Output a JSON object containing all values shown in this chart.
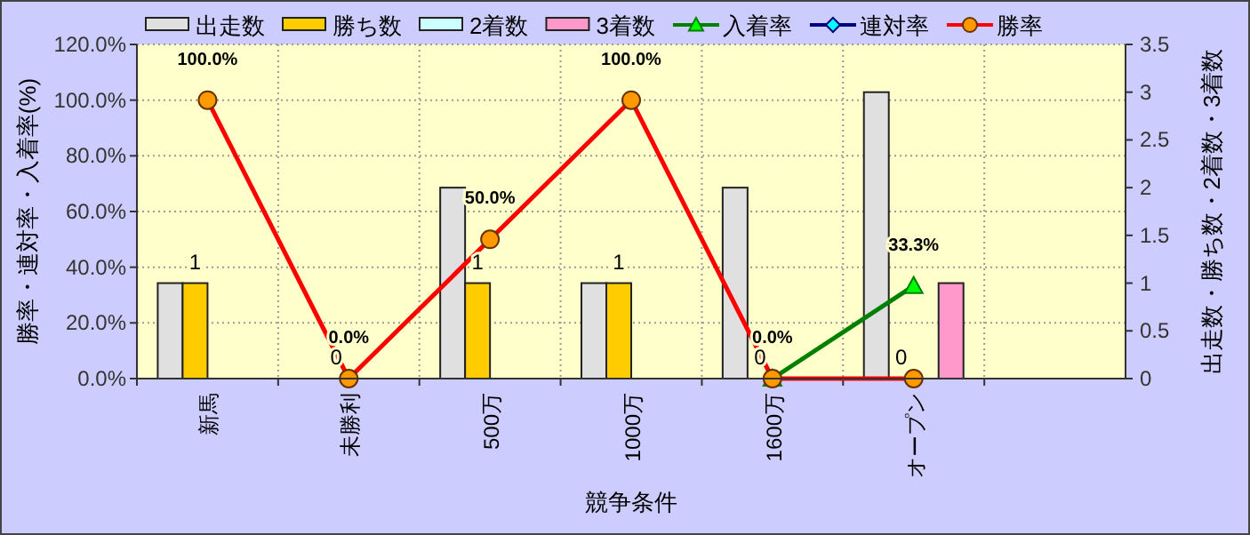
{
  "chart_data": {
    "type": "bar",
    "categories": [
      "新馬",
      "未勝利",
      "500万",
      "1000万",
      "1600万",
      "オープン",
      null
    ],
    "xlabel": "競争条件",
    "ylabel": "勝率・連対率・入着率(%)",
    "y2label": "出走数・勝ち数・2着数・3着数",
    "ylim": [
      0,
      120
    ],
    "yticks": [
      {
        "value": 0,
        "label": "0.0%"
      },
      {
        "value": 20,
        "label": "20.0%"
      },
      {
        "value": 40,
        "label": "40.0%"
      },
      {
        "value": 60,
        "label": "60.0%"
      },
      {
        "value": 80,
        "label": "80.0%"
      },
      {
        "value": 100,
        "label": "100.0%"
      },
      {
        "value": 120,
        "label": "120.0%"
      }
    ],
    "y2lim": [
      0,
      3.5
    ],
    "y2ticks": [
      0,
      0.5,
      1,
      1.5,
      2,
      2.5,
      3,
      3.5
    ],
    "grid": true,
    "legend": "top",
    "series": [
      {
        "name": "出走数",
        "axis": "y2",
        "color": "#e0e0e0",
        "values": [
          1,
          0,
          2,
          1,
          2,
          3,
          null
        ]
      },
      {
        "name": "勝ち数",
        "axis": "y2",
        "color": "#ffcc00",
        "values": [
          1,
          0,
          1,
          1,
          0,
          0,
          null
        ],
        "value_labels": [
          "1",
          "0",
          "1",
          "1",
          "0",
          "0",
          null
        ]
      },
      {
        "name": "2着数",
        "axis": "y2",
        "color": "#ccffff",
        "values": [
          0,
          0,
          0,
          0,
          0,
          0,
          null
        ]
      },
      {
        "name": "3着数",
        "axis": "y2",
        "color": "#ff99cc",
        "values": [
          0,
          0,
          0,
          0,
          0,
          1,
          null
        ]
      },
      {
        "name": "入着率",
        "type": "line",
        "axis": "y",
        "color": "#008000",
        "marker": "triangle",
        "values": [
          null,
          null,
          null,
          null,
          0,
          33.3,
          null
        ],
        "value_labels": [
          null,
          null,
          null,
          null,
          null,
          "33.3%",
          null
        ]
      },
      {
        "name": "連対率",
        "type": "line",
        "axis": "y",
        "color": "#000080",
        "marker": "diamond",
        "values": [
          null,
          null,
          null,
          null,
          null,
          null,
          null
        ]
      },
      {
        "name": "勝率",
        "type": "line",
        "axis": "y",
        "color": "#ff0000",
        "marker": "circle",
        "values": [
          100,
          0,
          50,
          100,
          0,
          0,
          null
        ],
        "value_labels": [
          "100.0%",
          "0.0%",
          "50.0%",
          "100.0%",
          "0.0%",
          null,
          null
        ]
      }
    ]
  }
}
